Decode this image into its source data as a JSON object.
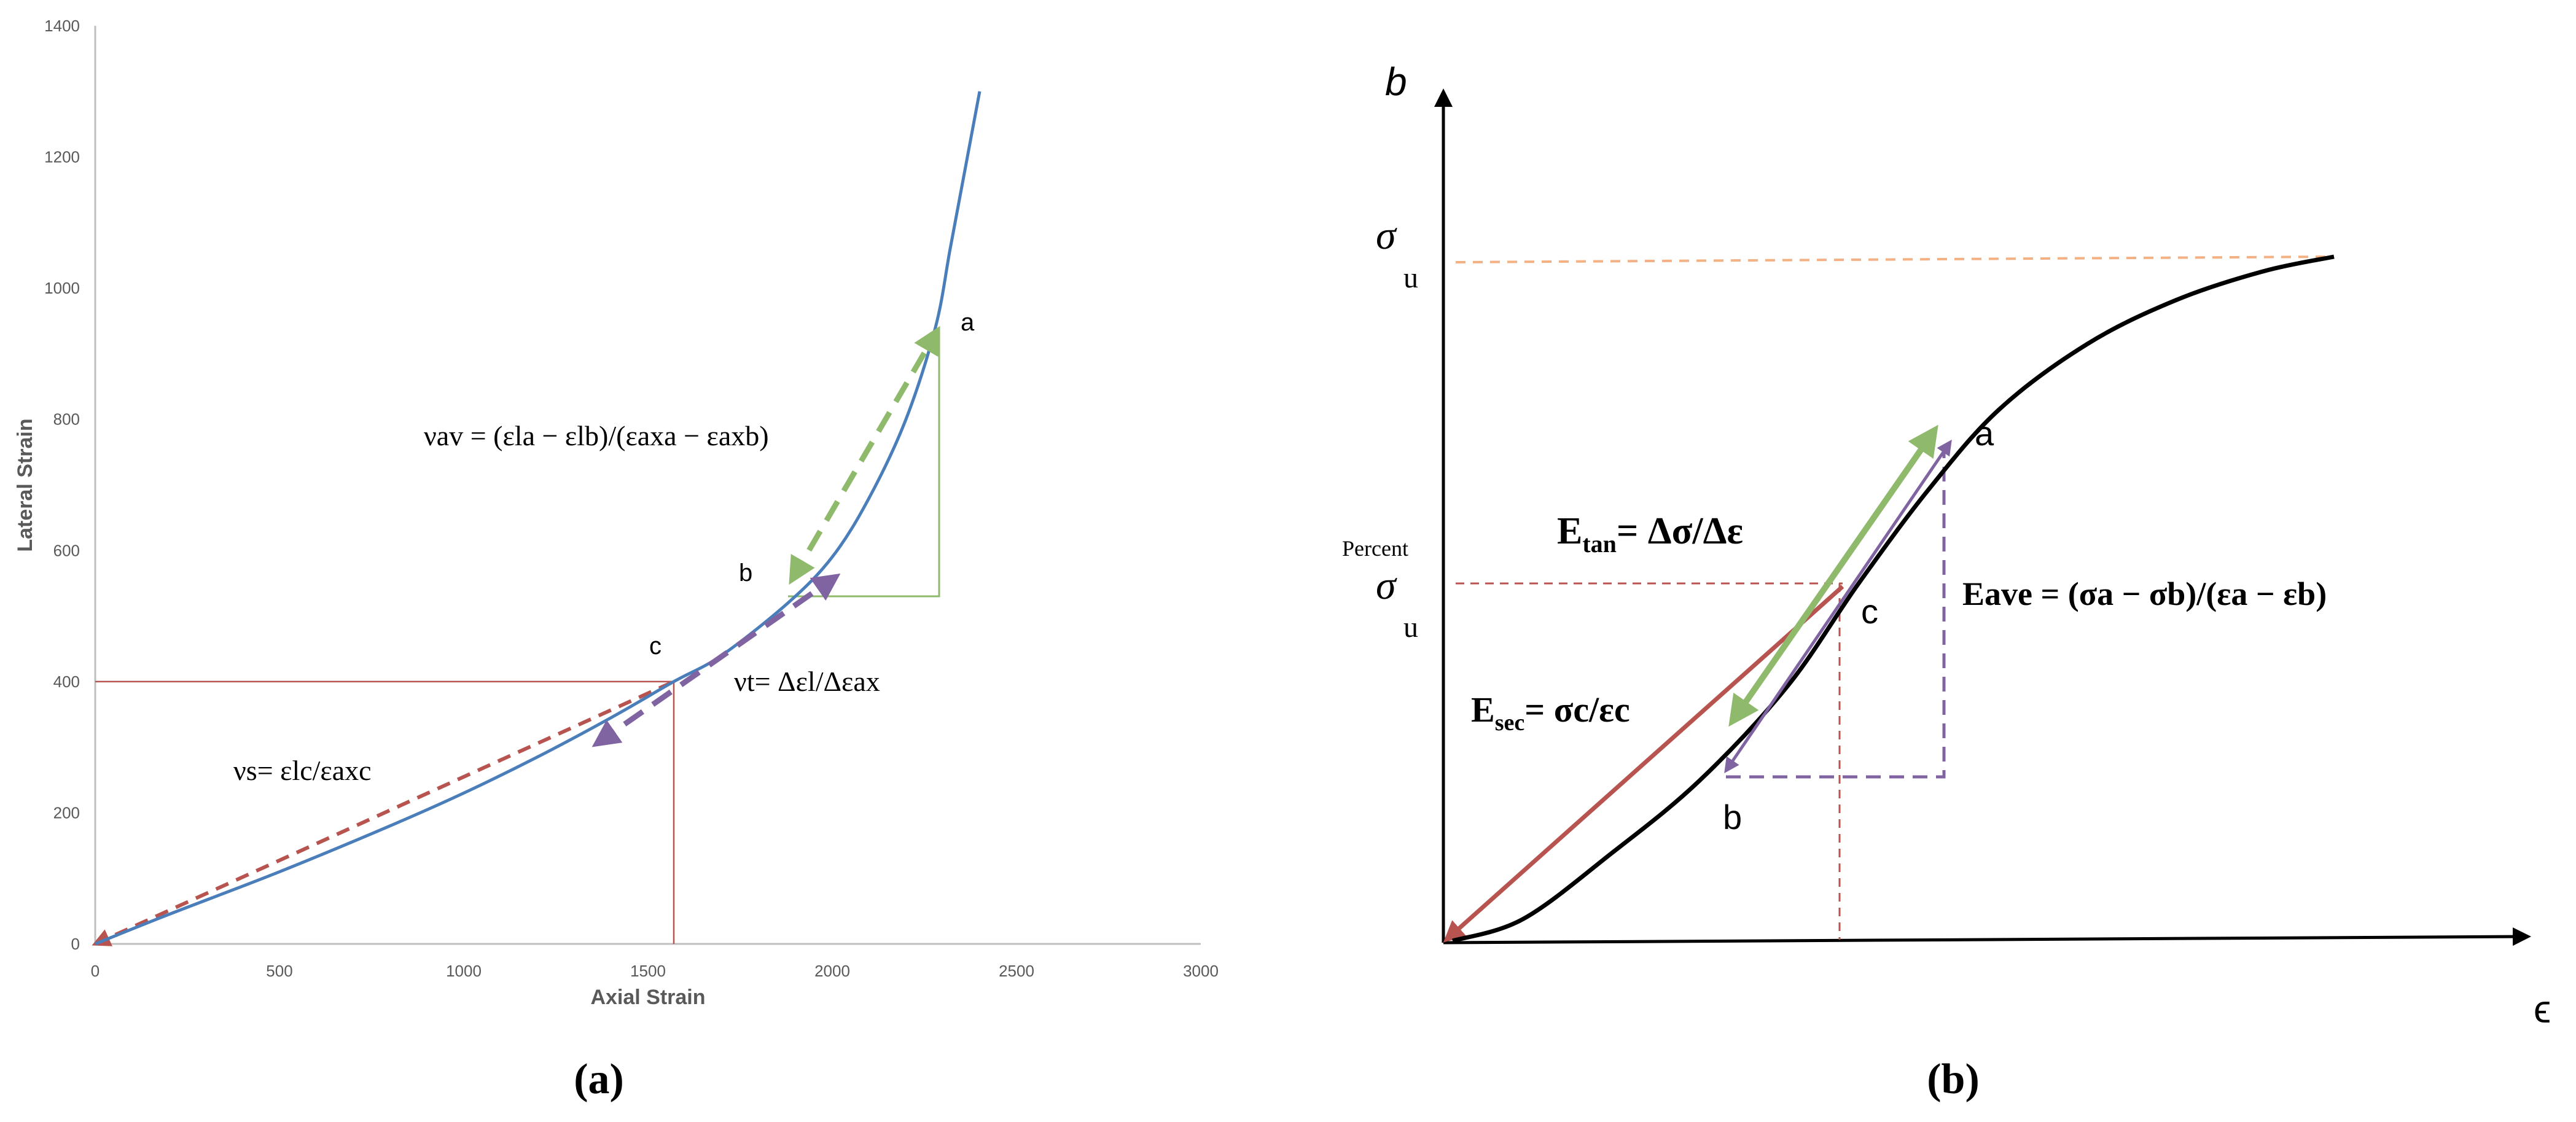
{
  "colors": {
    "curve_a": "#4a7ebb",
    "secant": "#b85450",
    "tangent": "#8fb96b",
    "average": "#8064a2",
    "ultimate": "#f4b183",
    "axis_gray": "#bfbfbf",
    "tick_text": "#595959"
  },
  "panel_a": {
    "caption": "(a)",
    "formula_av": "νav = (εla − εlb)/(εaxa − εaxb)",
    "formula_t": "νt= Δεl/Δεax",
    "formula_s": "νs= εlc/εaxc",
    "labels": {
      "a": "a",
      "b": "b",
      "c": "c"
    }
  },
  "panel_b": {
    "caption": "(b)",
    "y_axis_symbol": "b",
    "x_axis_symbol": "ϵ",
    "sigma_u_top": "σ",
    "sigma_u_top_sub": "u",
    "percent": "Percent",
    "sigma_u_mid": "σ",
    "sigma_u_mid_sub": "u",
    "e_tan_main": "E",
    "e_tan_sub": "tan",
    "e_tan_rest": "= Δσ/Δε",
    "e_sec_main": "E",
    "e_sec_sub": "sec",
    "e_sec_rest": "= σc/εc",
    "e_ave": "Eave = (σa − σb)/(εa − εb)",
    "labels": {
      "a": "a",
      "b": "b",
      "c": "c"
    }
  },
  "chart_data": [
    {
      "type": "line",
      "xlabel": "Axial Strain",
      "ylabel": "Lateral Strain",
      "xlim": [
        0,
        3000
      ],
      "ylim": [
        0,
        1400
      ],
      "xticks": [
        0,
        500,
        1000,
        1500,
        2000,
        2500,
        3000
      ],
      "yticks": [
        0,
        200,
        400,
        600,
        800,
        1000,
        1200,
        1400
      ],
      "grid": false,
      "series": [
        {
          "x": [
            0,
            200,
            500,
            800,
            1000,
            1200,
            1400,
            1570,
            1700,
            1880,
            2000,
            2100,
            2200,
            2280,
            2320,
            2360,
            2400
          ],
          "y": [
            0,
            45,
            110,
            180,
            230,
            285,
            345,
            400,
            440,
            520,
            590,
            680,
            800,
            940,
            1060,
            1180,
            1300
          ]
        }
      ],
      "points": {
        "a": [
          2290,
          940
        ],
        "b": [
          1880,
          530
        ],
        "c": [
          1570,
          400
        ]
      },
      "secant_line": {
        "from": [
          0,
          0
        ],
        "to": [
          1570,
          400
        ]
      },
      "reference_lines": {
        "x": 1570,
        "y": 400
      },
      "triangle": {
        "from": [
          1880,
          530
        ],
        "corner": [
          2290,
          530
        ],
        "to": [
          2290,
          940
        ]
      }
    },
    {
      "type": "line",
      "xlabel": "ϵ",
      "ylabel": "b",
      "series": [
        {
          "x": [
            0,
            0.08,
            0.18,
            0.28,
            0.38,
            0.46,
            0.54,
            0.62,
            0.72,
            0.82,
            0.92,
            1.0
          ],
          "y": [
            0,
            0.03,
            0.12,
            0.22,
            0.35,
            0.49,
            0.62,
            0.73,
            0.82,
            0.88,
            0.92,
            0.94
          ]
        }
      ],
      "points": {
        "a": [
          0.46,
          0.62
        ],
        "b": [
          0.28,
          0.22
        ],
        "c": [
          0.38,
          0.37
        ]
      },
      "ultimate_stress_level": 0.94
    }
  ]
}
